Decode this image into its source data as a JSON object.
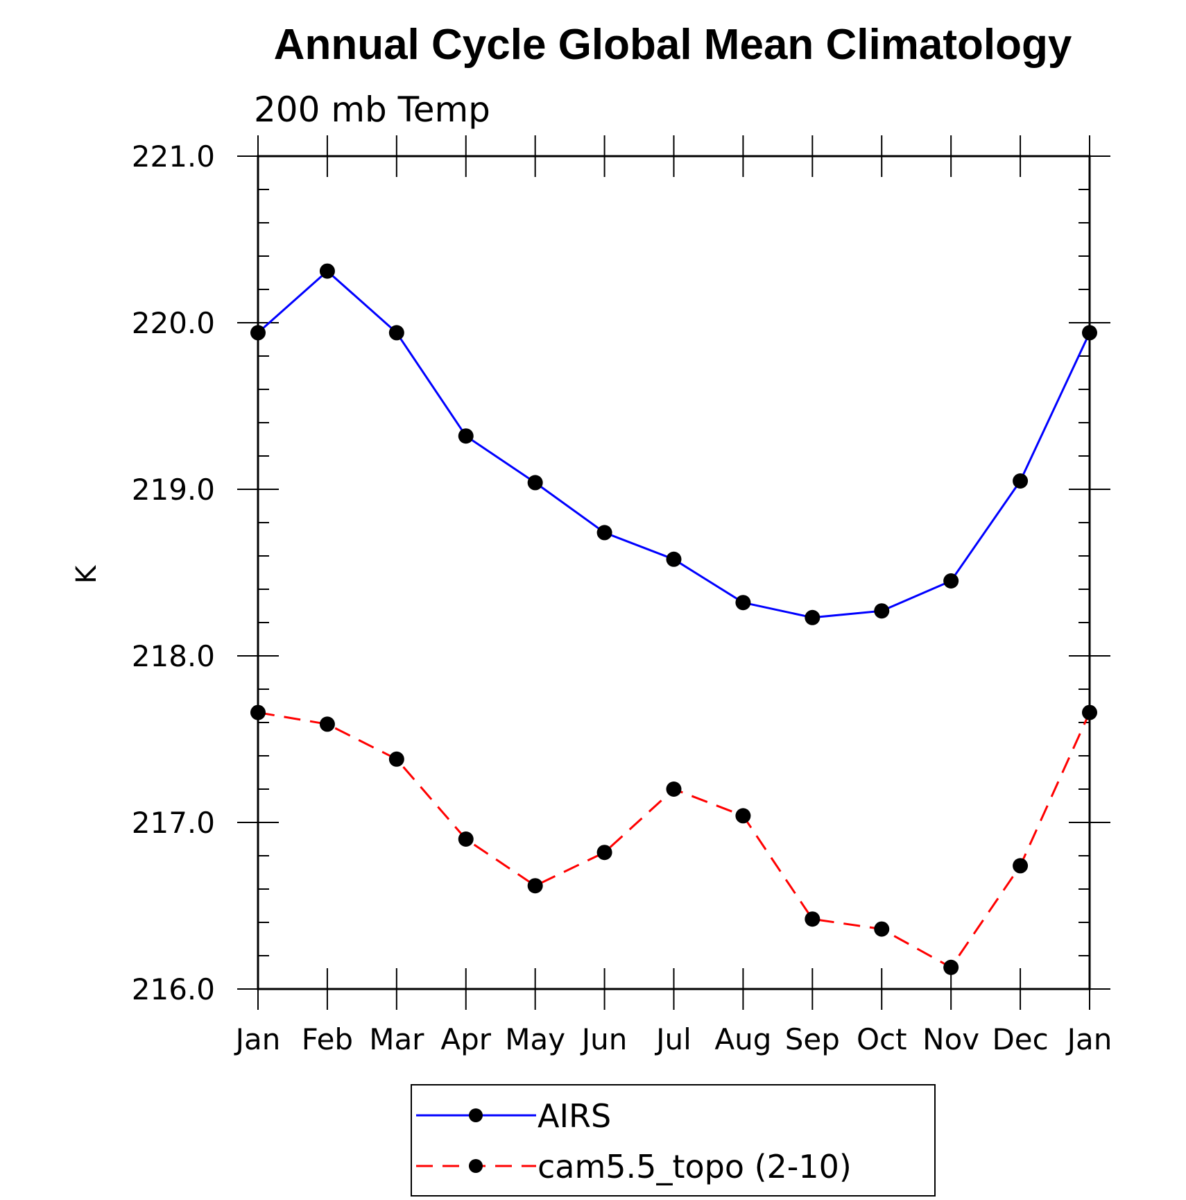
{
  "chart_data": {
    "type": "line",
    "title": "Annual Cycle Global Mean Climatology",
    "subtitle": "200 mb Temp",
    "ylabel": "K",
    "xlabel": "",
    "categories": [
      "Jan",
      "Feb",
      "Mar",
      "Apr",
      "May",
      "Jun",
      "Jul",
      "Aug",
      "Sep",
      "Oct",
      "Nov",
      "Dec",
      "Jan"
    ],
    "ylim": [
      216.0,
      221.0
    ],
    "yticks": [
      "216.0",
      "217.0",
      "218.0",
      "219.0",
      "220.0",
      "221.0"
    ],
    "series": [
      {
        "name": "AIRS",
        "color": "#0000ff",
        "dash": "solid",
        "values": [
          219.94,
          220.31,
          219.94,
          219.32,
          219.04,
          218.74,
          218.58,
          218.32,
          218.23,
          218.27,
          218.45,
          219.05,
          219.94
        ]
      },
      {
        "name": "cam5.5_topo (2-10)",
        "color": "#ff0000",
        "dash": "dashed",
        "values": [
          217.66,
          217.59,
          217.38,
          216.9,
          216.62,
          216.82,
          217.2,
          217.04,
          216.42,
          216.36,
          216.13,
          216.74,
          217.66
        ]
      }
    ],
    "marker_color": "#000000",
    "grid": false,
    "legend_position": "bottom-center"
  }
}
